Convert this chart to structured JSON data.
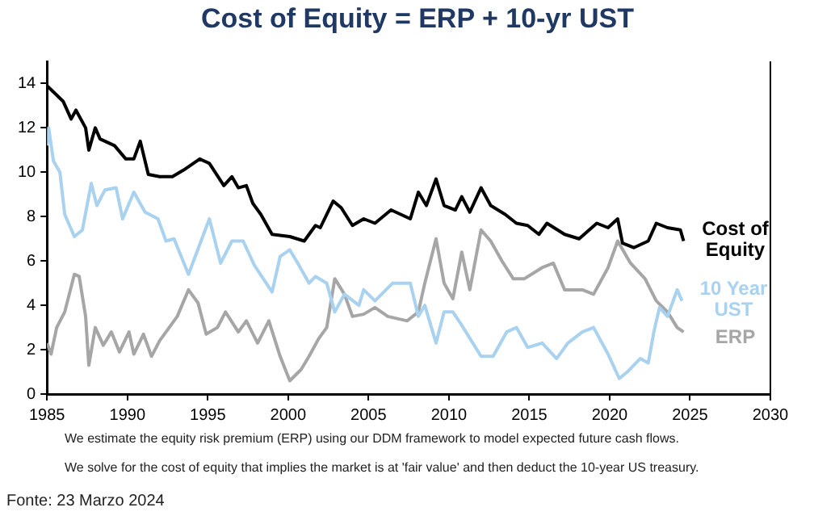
{
  "chart_data": {
    "type": "line",
    "title": "Cost of Equity = ERP + 10-yr UST",
    "xlim": [
      1985,
      2030
    ],
    "xticks": [
      1985,
      1990,
      1995,
      2000,
      2005,
      2010,
      2015,
      2020,
      2025,
      2030
    ],
    "ylim": [
      0,
      15
    ],
    "yticks": [
      0,
      2,
      4,
      6,
      8,
      10,
      12,
      14
    ],
    "grid": false,
    "legend": false,
    "marker": "none",
    "line_style": "solid",
    "series": [
      {
        "name": "Cost of Equity",
        "color": "#000000",
        "x": [
          1985,
          1986,
          1986.5,
          1986.8,
          1987.4,
          1987.6,
          1988,
          1988.3,
          1989.2,
          1989.9,
          1990.4,
          1990.8,
          1991.3,
          1992,
          1992.8,
          1993.5,
          1994.5,
          1995.1,
          1996,
          1996.5,
          1996.9,
          1997.4,
          1997.8,
          1998.3,
          1999,
          2000.1,
          2001,
          2001.7,
          2002,
          2002.8,
          2003.3,
          2004,
          2004.7,
          2005.4,
          2006.4,
          2007.6,
          2008.1,
          2008.6,
          2009.2,
          2009.7,
          2010.4,
          2010.8,
          2011.3,
          2012,
          2012.6,
          2013.5,
          2014.2,
          2014.9,
          2015.6,
          2016.1,
          2017.2,
          2018.1,
          2019.2,
          2019.9,
          2020.5,
          2020.8,
          2021.5,
          2022.4,
          2022.9,
          2023.6,
          2024.4,
          2024.6
        ],
        "values": [
          13.9,
          13.2,
          12.4,
          12.8,
          12,
          11,
          12,
          11.5,
          11.2,
          10.6,
          10.6,
          11.4,
          9.9,
          9.8,
          9.8,
          10.1,
          10.6,
          10.4,
          9.4,
          9.8,
          9.3,
          9.4,
          8.6,
          8.1,
          7.2,
          7.1,
          6.9,
          7.6,
          7.5,
          8.7,
          8.4,
          7.6,
          7.9,
          7.7,
          8.3,
          7.9,
          9.1,
          8.5,
          9.7,
          8.5,
          8.3,
          8.9,
          8.2,
          9.3,
          8.5,
          8.1,
          7.7,
          7.6,
          7.2,
          7.7,
          7.2,
          7,
          7.7,
          7.5,
          7.9,
          6.8,
          6.6,
          6.9,
          7.7,
          7.5,
          7.4,
          6.9
        ]
      },
      {
        "name": "10 Year UST",
        "color": "#a9d1f0",
        "x": [
          1985,
          1985.1,
          1985.4,
          1985.8,
          1986.1,
          1986.7,
          1987.2,
          1987.75,
          1988.1,
          1988.6,
          1989.3,
          1989.7,
          1990.4,
          1991.1,
          1991.9,
          1992.4,
          1992.9,
          1993.8,
          1995.1,
          1995.8,
          1996.5,
          1997.2,
          1997.9,
          1999,
          1999.5,
          2000.1,
          2000.6,
          2001.3,
          2001.7,
          2002.4,
          2002.9,
          2003.5,
          2004.4,
          2004.7,
          2005.4,
          2006.5,
          2007.6,
          2008.1,
          2008.5,
          2009.2,
          2009.7,
          2010.25,
          2010.8,
          2012,
          2012.75,
          2013.6,
          2014.2,
          2014.9,
          2015.8,
          2016.7,
          2017.4,
          2018.3,
          2019,
          2019.9,
          2020.6,
          2021.1,
          2021.9,
          2022.4,
          2022.75,
          2023.1,
          2023.6,
          2024.2,
          2024.5
        ],
        "values": [
          11.2,
          12,
          10.5,
          10,
          8.1,
          7.1,
          7.4,
          9.5,
          8.5,
          9.2,
          9.3,
          7.9,
          9.1,
          8.2,
          7.9,
          6.9,
          7,
          5.4,
          7.9,
          5.9,
          6.9,
          6.9,
          5.8,
          4.6,
          6.2,
          6.5,
          5.9,
          5,
          5.3,
          5,
          3.7,
          4.5,
          4,
          4.7,
          4.2,
          5,
          5,
          3.5,
          4,
          2.3,
          3.7,
          3.7,
          3.1,
          1.7,
          1.7,
          2.8,
          3,
          2.1,
          2.3,
          1.6,
          2.3,
          2.8,
          3,
          1.8,
          0.7,
          1,
          1.6,
          1.4,
          2.8,
          3.9,
          3.5,
          4.7,
          4.2
        ]
      },
      {
        "name": "ERP",
        "color": "#a6a6a6",
        "x": [
          1985,
          1985.25,
          1985.6,
          1986.1,
          1986.7,
          1987,
          1987.4,
          1987.6,
          1988,
          1988.5,
          1989,
          1989.5,
          1990.1,
          1990.4,
          1991,
          1991.5,
          1992,
          1992.6,
          1993.1,
          1993.8,
          1994.4,
          1994.9,
          1995.6,
          1996.1,
          1996.9,
          1997.4,
          1998.1,
          1998.8,
          1999.5,
          2000.1,
          2000.8,
          2001.3,
          2001.9,
          2002.4,
          2002.9,
          2003.5,
          2004,
          2004.7,
          2005.4,
          2006.2,
          2007.4,
          2008.1,
          2008.5,
          2009.2,
          2009.7,
          2010.25,
          2010.8,
          2011.3,
          2012,
          2012.6,
          2013.3,
          2014,
          2014.7,
          2015.8,
          2016.5,
          2017.2,
          2018.3,
          2019,
          2019.9,
          2020.5,
          2021.3,
          2022.2,
          2022.9,
          2023.6,
          2024.2,
          2024.6
        ],
        "values": [
          2.3,
          1.8,
          3,
          3.7,
          5.4,
          5.3,
          3.5,
          1.3,
          3,
          2.2,
          2.8,
          1.9,
          2.8,
          1.8,
          2.7,
          1.7,
          2.4,
          3,
          3.5,
          4.7,
          4.1,
          2.7,
          3,
          3.7,
          2.8,
          3.3,
          2.3,
          3.3,
          1.7,
          0.6,
          1.1,
          1.7,
          2.5,
          3,
          5.2,
          4.5,
          3.5,
          3.6,
          3.9,
          3.5,
          3.3,
          3.7,
          5,
          7,
          5,
          4.3,
          6.4,
          4.7,
          7.4,
          6.9,
          6,
          5.2,
          5.2,
          5.7,
          5.9,
          4.7,
          4.7,
          4.5,
          5.7,
          6.9,
          5.9,
          5.2,
          4.2,
          3.7,
          3,
          2.8
        ]
      }
    ],
    "annotations": [
      "We estimate the equity risk premium (ERP) using our DDM framework to model expected future cash flows.",
      "We solve for the cost of equity that implies the market is at 'fair value' and then deduct the 10-year US treasury.",
      "Fonte: 23 Marzo 2024"
    ]
  }
}
